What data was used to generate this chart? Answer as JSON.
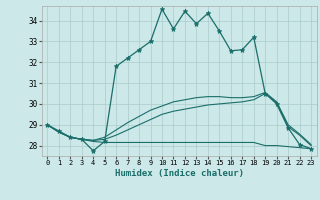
{
  "xlabel": "Humidex (Indice chaleur)",
  "background_color": "#cce8e8",
  "grid_color": "#aacccc",
  "line_color": "#1a6e6a",
  "ylim": [
    27.5,
    34.7
  ],
  "xlim": [
    -0.5,
    23.5
  ],
  "yticks": [
    28,
    29,
    30,
    31,
    32,
    33,
    34
  ],
  "xticks": [
    0,
    1,
    2,
    3,
    4,
    5,
    6,
    7,
    8,
    9,
    10,
    11,
    12,
    13,
    14,
    15,
    16,
    17,
    18,
    19,
    20,
    21,
    22,
    23
  ],
  "line1_x": [
    0,
    1,
    2,
    3,
    4,
    5,
    6,
    7,
    8,
    9,
    10,
    11,
    12,
    13,
    14,
    15,
    16,
    17,
    18,
    19,
    20,
    21,
    22,
    23
  ],
  "line1_y": [
    29.0,
    28.7,
    28.4,
    28.3,
    27.75,
    28.2,
    31.8,
    32.2,
    32.6,
    33.0,
    34.55,
    33.6,
    34.45,
    33.85,
    34.35,
    33.5,
    32.55,
    32.6,
    33.2,
    30.5,
    30.0,
    28.85,
    28.05,
    27.85
  ],
  "line2_x": [
    0,
    1,
    2,
    3,
    4,
    5,
    6,
    7,
    8,
    9,
    10,
    11,
    12,
    13,
    14,
    15,
    16,
    17,
    18,
    19,
    20,
    21,
    22,
    23
  ],
  "line2_y": [
    29.0,
    28.65,
    28.4,
    28.3,
    28.2,
    28.15,
    28.15,
    28.15,
    28.15,
    28.15,
    28.15,
    28.15,
    28.15,
    28.15,
    28.15,
    28.15,
    28.15,
    28.15,
    28.15,
    28.0,
    28.0,
    27.95,
    27.9,
    27.85
  ],
  "line3_x": [
    0,
    1,
    2,
    3,
    4,
    5,
    6,
    7,
    8,
    9,
    10,
    11,
    12,
    13,
    14,
    15,
    16,
    17,
    18,
    19,
    20,
    21,
    22,
    23
  ],
  "line3_y": [
    29.0,
    28.65,
    28.4,
    28.3,
    28.25,
    28.3,
    28.5,
    28.75,
    29.0,
    29.25,
    29.5,
    29.65,
    29.75,
    29.85,
    29.95,
    30.0,
    30.05,
    30.1,
    30.2,
    30.5,
    30.05,
    28.9,
    28.5,
    28.0
  ],
  "line4_x": [
    0,
    1,
    2,
    3,
    4,
    5,
    6,
    7,
    8,
    9,
    10,
    11,
    12,
    13,
    14,
    15,
    16,
    17,
    18,
    19,
    20,
    21,
    22,
    23
  ],
  "line4_y": [
    29.0,
    28.65,
    28.4,
    28.3,
    28.25,
    28.4,
    28.75,
    29.1,
    29.4,
    29.7,
    29.9,
    30.1,
    30.2,
    30.3,
    30.35,
    30.35,
    30.3,
    30.3,
    30.35,
    30.55,
    30.1,
    29.0,
    28.55,
    28.05
  ]
}
